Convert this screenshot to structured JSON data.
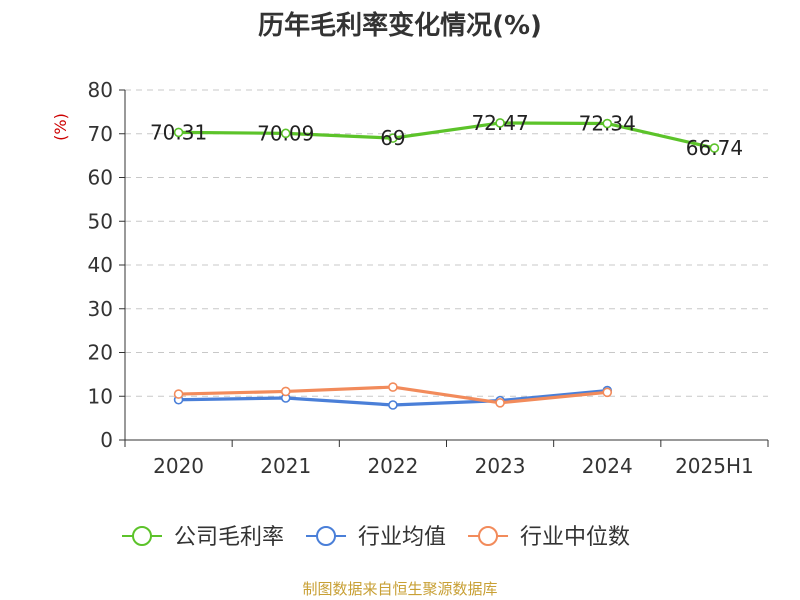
{
  "chart_data": {
    "type": "line",
    "title": "历年毛利率变化情况(%)",
    "ylabel": "(%)",
    "categories": [
      "2020",
      "2021",
      "2022",
      "2023",
      "2024",
      "2025H1"
    ],
    "y_ticks": [
      "0",
      "10",
      "20",
      "30",
      "40",
      "50",
      "60",
      "70",
      "80"
    ],
    "ylim": [
      0,
      80
    ],
    "grid": true,
    "legend_position": "bottom",
    "series": [
      {
        "name": "公司毛利率",
        "color": "#5cc32a",
        "values": [
          70.31,
          70.09,
          69,
          72.47,
          72.34,
          66.74
        ],
        "labels": [
          "70.31",
          "70.09",
          "69",
          "72.47",
          "72.34",
          "66.74"
        ]
      },
      {
        "name": "行业均值",
        "color": "#4a7fd8",
        "values": [
          9.2,
          9.6,
          8.0,
          9.0,
          11.3,
          null
        ]
      },
      {
        "name": "行业中位数",
        "color": "#f28b5b",
        "values": [
          10.5,
          11.1,
          12.1,
          8.5,
          10.9,
          null
        ]
      }
    ]
  },
  "source_text": "制图数据来自恒生聚源数据库"
}
